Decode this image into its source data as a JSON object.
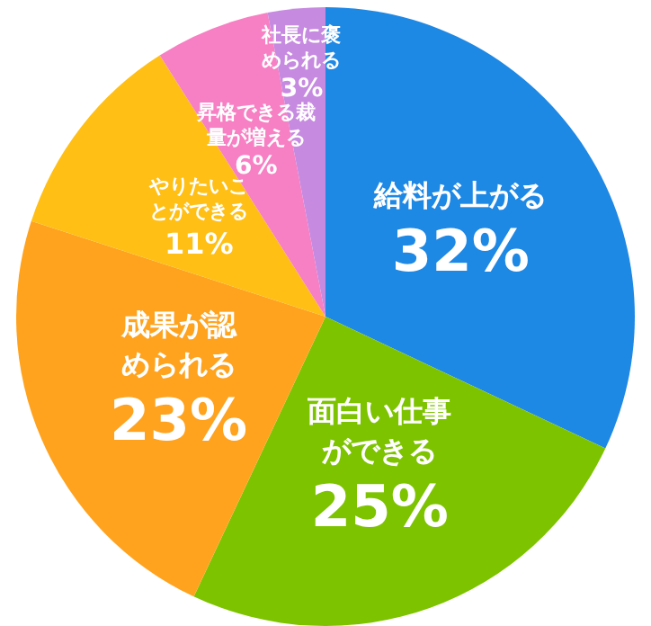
{
  "chart_data": {
    "type": "pie",
    "categories": [
      "給料が上がる",
      "面白い仕事ができる",
      "成果が認められる",
      "やりたいことができる",
      "昇格できる裁量が増える",
      "社長に褒められる"
    ],
    "values": [
      32,
      25,
      23,
      11,
      6,
      3
    ],
    "value_labels": [
      "32%",
      "25%",
      "23%",
      "11%",
      "6%",
      "3%"
    ],
    "colors": [
      "#1e88e5",
      "#7dc300",
      "#ffa31f",
      "#ffbf14",
      "#f77fc3",
      "#c68ae0"
    ],
    "legend": false
  }
}
